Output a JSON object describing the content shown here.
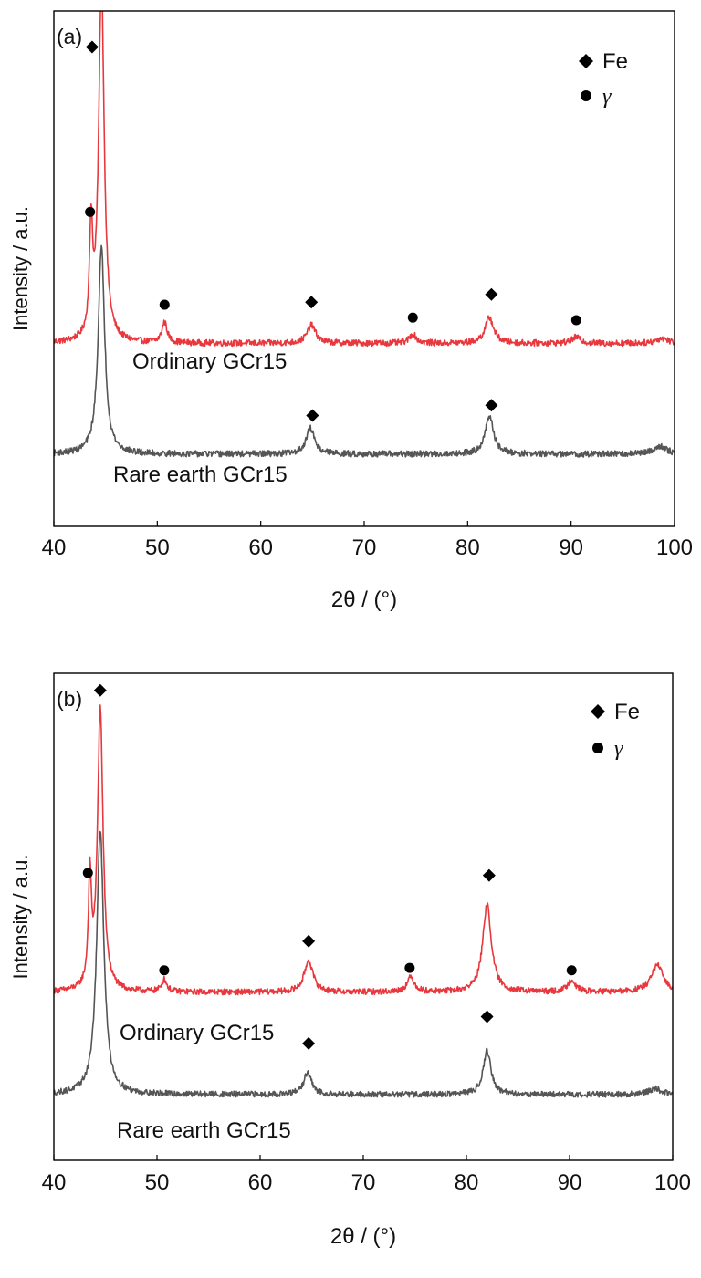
{
  "chart_data": [
    {
      "type": "line",
      "panel_label": "(a)",
      "xlabel": "2θ / (°)",
      "ylabel": "Intensity / a.u.",
      "xlim": [
        40,
        100
      ],
      "x_ticks": [
        40,
        50,
        60,
        70,
        80,
        90,
        100
      ],
      "y_ticks_shown": false,
      "legend": {
        "placement": "top-right",
        "entries": [
          {
            "marker": "diamond",
            "label": "Fe"
          },
          {
            "marker": "circle",
            "label": "γ"
          }
        ]
      },
      "series": [
        {
          "label": "Ordinary GCr15",
          "color": "#e8383d",
          "baseline": 0.355,
          "peaks": [
            {
              "x": 43.6,
              "h": 0.21,
              "w": 0.18
            },
            {
              "x": 44.6,
              "h": 0.7,
              "w": 0.32
            },
            {
              "x": 50.7,
              "h": 0.04,
              "w": 0.3
            },
            {
              "x": 64.9,
              "h": 0.035,
              "w": 0.5
            },
            {
              "x": 74.7,
              "h": 0.018,
              "w": 0.4
            },
            {
              "x": 82.1,
              "h": 0.05,
              "w": 0.5
            },
            {
              "x": 90.5,
              "h": 0.012,
              "w": 0.5
            },
            {
              "x": 98.8,
              "h": 0.01,
              "w": 0.7
            }
          ],
          "fe_markers": [
            {
              "x": 43.7,
              "y": 0.93
            },
            {
              "x": 64.9,
              "y": 0.435
            },
            {
              "x": 82.3,
              "y": 0.45
            }
          ],
          "gamma_markers": [
            {
              "x": 43.5,
              "y": 0.61
            },
            {
              "x": 50.7,
              "y": 0.43
            },
            {
              "x": 74.7,
              "y": 0.405
            },
            {
              "x": 90.5,
              "y": 0.4
            }
          ]
        },
        {
          "label": "Rare earth GCr15",
          "color": "#555555",
          "baseline": 0.14,
          "peaks": [
            {
              "x": 44.6,
              "h": 0.4,
              "w": 0.38
            },
            {
              "x": 64.8,
              "h": 0.05,
              "w": 0.5
            },
            {
              "x": 82.1,
              "h": 0.072,
              "w": 0.5
            },
            {
              "x": 98.6,
              "h": 0.015,
              "w": 0.8
            }
          ],
          "fe_markers": [
            {
              "x": 65.0,
              "y": 0.215
            },
            {
              "x": 82.3,
              "y": 0.235
            }
          ],
          "gamma_markers": []
        }
      ]
    },
    {
      "type": "line",
      "panel_label": "(b)",
      "xlabel": "2θ / (°)",
      "ylabel": "Intensity / a.u.",
      "xlim": [
        40,
        100
      ],
      "x_ticks": [
        40,
        50,
        60,
        70,
        80,
        90,
        100
      ],
      "y_ticks_shown": false,
      "legend": {
        "placement": "top-right",
        "entries": [
          {
            "marker": "diamond",
            "label": "Fe"
          },
          {
            "marker": "circle",
            "label": "γ"
          }
        ]
      },
      "series": [
        {
          "label": "Ordinary GCr15",
          "color": "#e8383d",
          "baseline": 0.345,
          "peaks": [
            {
              "x": 43.5,
              "h": 0.22,
              "w": 0.18
            },
            {
              "x": 44.5,
              "h": 0.58,
              "w": 0.32
            },
            {
              "x": 50.7,
              "h": 0.025,
              "w": 0.3
            },
            {
              "x": 64.7,
              "h": 0.065,
              "w": 0.5
            },
            {
              "x": 74.6,
              "h": 0.03,
              "w": 0.45
            },
            {
              "x": 82.0,
              "h": 0.18,
              "w": 0.5
            },
            {
              "x": 90.2,
              "h": 0.025,
              "w": 0.45
            },
            {
              "x": 98.5,
              "h": 0.055,
              "w": 0.7
            }
          ],
          "fe_markers": [
            {
              "x": 44.5,
              "y": 0.965
            },
            {
              "x": 64.7,
              "y": 0.45
            },
            {
              "x": 82.2,
              "y": 0.585
            }
          ],
          "gamma_markers": [
            {
              "x": 43.3,
              "y": 0.59
            },
            {
              "x": 50.7,
              "y": 0.39
            },
            {
              "x": 74.5,
              "y": 0.395
            },
            {
              "x": 90.2,
              "y": 0.39
            }
          ]
        },
        {
          "label": "Rare earth GCr15",
          "color": "#555555",
          "baseline": 0.135,
          "peaks": [
            {
              "x": 44.5,
              "h": 0.54,
              "w": 0.42
            },
            {
              "x": 64.6,
              "h": 0.045,
              "w": 0.45
            },
            {
              "x": 82.0,
              "h": 0.09,
              "w": 0.45
            },
            {
              "x": 98.3,
              "h": 0.012,
              "w": 0.7
            }
          ],
          "fe_markers": [
            {
              "x": 64.7,
              "y": 0.24
            },
            {
              "x": 82.0,
              "y": 0.295
            }
          ],
          "gamma_markers": []
        }
      ]
    }
  ]
}
